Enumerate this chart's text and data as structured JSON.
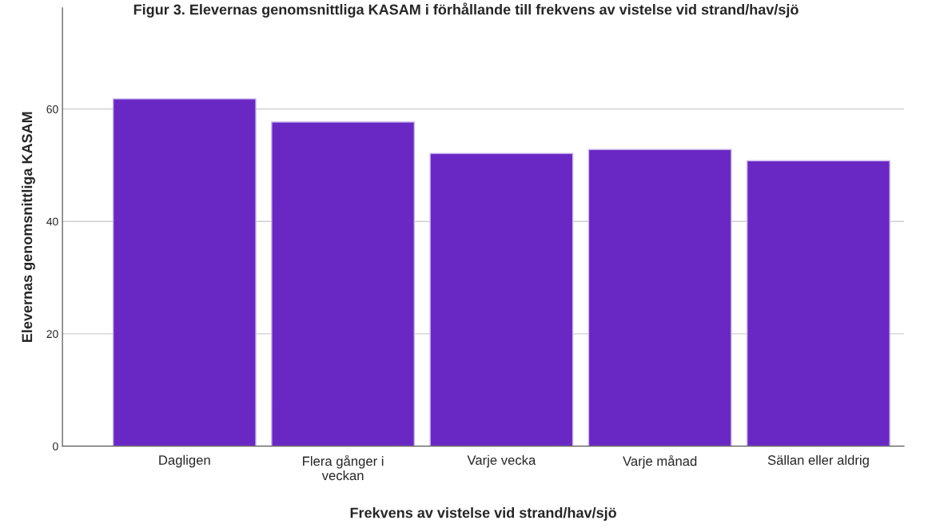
{
  "chart_data": {
    "type": "bar",
    "title": "Figur 3. Elevernas genomsnittliga KASAM i förhållande till frekvens av vistelse vid strand/hav/sjö",
    "xlabel": "Frekvens av vistelse vid strand/hav/sjö",
    "ylabel": "Elevernas genomsnittliga KASAM",
    "categories": [
      "Dagligen",
      "Flera gånger i\nveckan",
      "Varje vecka",
      "Varje månad",
      "Sällan eller aldrig"
    ],
    "values": [
      61.8,
      57.7,
      52.1,
      52.8,
      50.8
    ],
    "color": "#6927c3",
    "ylim": [
      0,
      78
    ],
    "yticks": [
      0,
      20,
      40,
      60
    ],
    "grid": "y"
  }
}
